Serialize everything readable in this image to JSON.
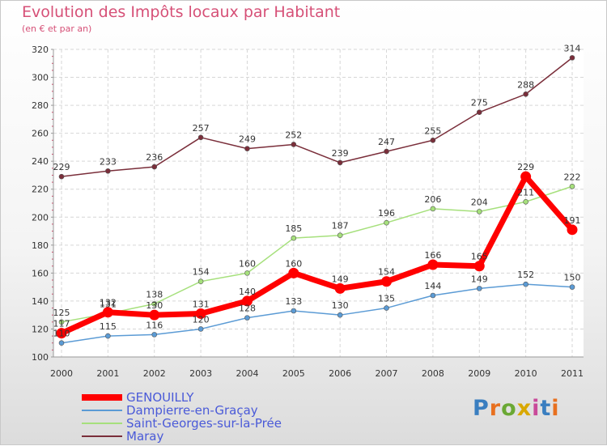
{
  "title": "Evolution des Impôts locaux par Habitant",
  "subtitle": "(en € et par an)",
  "logo_text": "Proxiti",
  "chart_data": {
    "type": "line",
    "title": "Evolution des Impôts locaux par Habitant",
    "subtitle": "(en € et par an)",
    "xlabel": "",
    "ylabel": "",
    "categories": [
      "2000",
      "2001",
      "2002",
      "2003",
      "2004",
      "2005",
      "2006",
      "2007",
      "2008",
      "2009",
      "2010",
      "2011"
    ],
    "ylim": [
      100,
      320
    ],
    "yticks": [
      100,
      120,
      140,
      160,
      180,
      200,
      220,
      240,
      260,
      280,
      300,
      320
    ],
    "grid": true,
    "legend_position": "bottom-left",
    "series": [
      {
        "name": "GENOUILLY",
        "color": "#ff0000",
        "emphasis": "thick",
        "values": [
          117,
          132,
          130,
          131,
          140,
          160,
          149,
          154,
          166,
          165,
          229,
          191
        ],
        "labels": [
          "117",
          "132",
          "130",
          "131",
          "140",
          "160",
          "149",
          "154",
          "166",
          "165",
          "229",
          "191"
        ]
      },
      {
        "name": "Dampierre-en-Graçay",
        "color": "#5b9bd5",
        "emphasis": "thin",
        "values": [
          110,
          115,
          116,
          120,
          128,
          133,
          130,
          135,
          144,
          149,
          152,
          150
        ],
        "labels": [
          "110",
          "115",
          "116",
          "120",
          "128",
          "133",
          "130",
          "135",
          "144",
          "149",
          "152",
          "150"
        ]
      },
      {
        "name": "Saint-Georges-sur-la-Prée",
        "color": "#a6e07c",
        "emphasis": "thin",
        "values": [
          125,
          131,
          138,
          154,
          160,
          185,
          187,
          196,
          206,
          204,
          211,
          222
        ],
        "labels": [
          "125",
          "131",
          "138",
          "154",
          "160",
          "185",
          "187",
          "196",
          "206",
          "204",
          "211",
          "222"
        ]
      },
      {
        "name": "Maray",
        "color": "#7a2e3a",
        "emphasis": "thin",
        "values": [
          229,
          233,
          236,
          257,
          249,
          252,
          239,
          247,
          255,
          275,
          288,
          314
        ],
        "labels": [
          "229",
          "233",
          "236",
          "257",
          "249",
          "252",
          "239",
          "247",
          "255",
          "275",
          "288",
          "314"
        ]
      }
    ]
  },
  "legend": {
    "items": [
      {
        "label": "GENOUILLY",
        "color": "#ff0000"
      },
      {
        "label": "Dampierre-en-Graçay",
        "color": "#5b9bd5"
      },
      {
        "label": "Saint-Georges-sur-la-Prée",
        "color": "#a6e07c"
      },
      {
        "label": "Maray",
        "color": "#7a2e3a"
      }
    ]
  }
}
